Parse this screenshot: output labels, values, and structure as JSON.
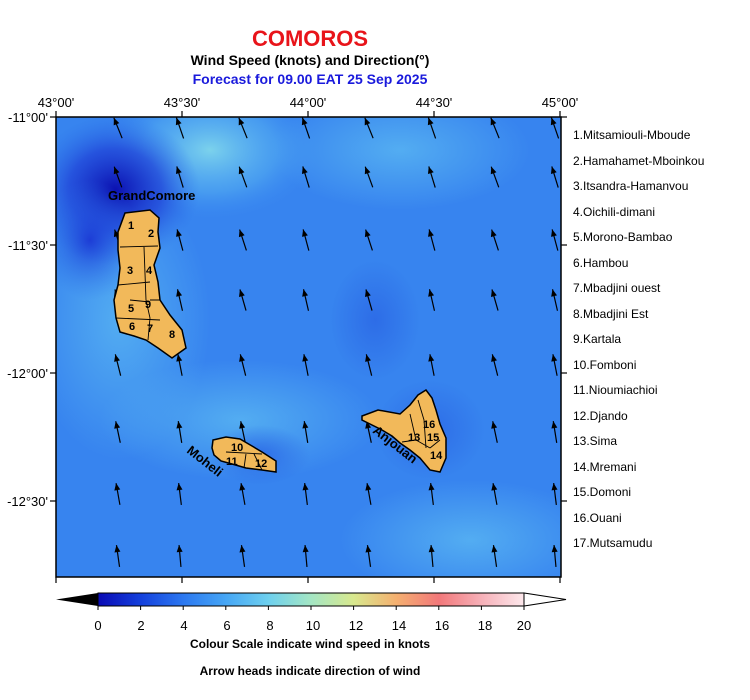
{
  "header": {
    "country": "COMOROS",
    "subtitle": "Wind Speed (knots) and Direction(°)",
    "forecast": "Forecast for  09.00 EAT 25 Sep 2025"
  },
  "axes": {
    "x_ticks": [
      "43°00'",
      "43°30'",
      "44°00'",
      "44°30'",
      "45°00'"
    ],
    "y_ticks": [
      "-11°00'",
      "-11°30'",
      "-12°00'",
      "-12°30'"
    ]
  },
  "islands": {
    "grand_comore": "GrandComore",
    "moheli": "Moheli",
    "anjouan": "Anjouan"
  },
  "region_numbers": {
    "gc": [
      "1",
      "2",
      "3",
      "4",
      "5",
      "6",
      "7",
      "8",
      "9"
    ],
    "mo": [
      "10",
      "11",
      "12"
    ],
    "an": [
      "13",
      "14",
      "15",
      "16"
    ]
  },
  "regions": [
    "1.Mitsamiouli-Mboude",
    "2.Hamahamet-Mboinkou",
    "3.Itsandra-Hamanvou",
    "4.Oichili-dimani",
    "5.Morono-Bambao",
    "6.Hambou",
    "7.Mbadjini ouest",
    "8.Mbadjini Est",
    "9.Kartala",
    "10.Fomboni",
    "11.Nioumiachioi",
    "12.Djando",
    "13.Sima",
    "14.Mremani",
    "15.Domoni",
    "16.Ouani",
    "17.Mutsamudu"
  ],
  "colorbar": {
    "ticks": [
      "0",
      "2",
      "4",
      "6",
      "8",
      "10",
      "12",
      "14",
      "16",
      "18",
      "20"
    ],
    "colors": [
      "#0a0ab4",
      "#1440dc",
      "#2c78f0",
      "#46a6f5",
      "#6ed0ee",
      "#a4e6c4",
      "#d8e88e",
      "#f4b070",
      "#f2787a",
      "#f6b0b8",
      "#fde8ec"
    ],
    "caption": "Colour Scale indicate wind speed in knots",
    "note": "Arrow heads indicate direction of wind"
  },
  "chart_data": {
    "type": "map",
    "variable": "wind speed (knots) and direction",
    "speed_range": [
      0,
      20
    ],
    "lon_range": [
      "43°00'",
      "45°00'"
    ],
    "lat_range": [
      "-11°00'",
      "-12°50'"
    ]
  }
}
